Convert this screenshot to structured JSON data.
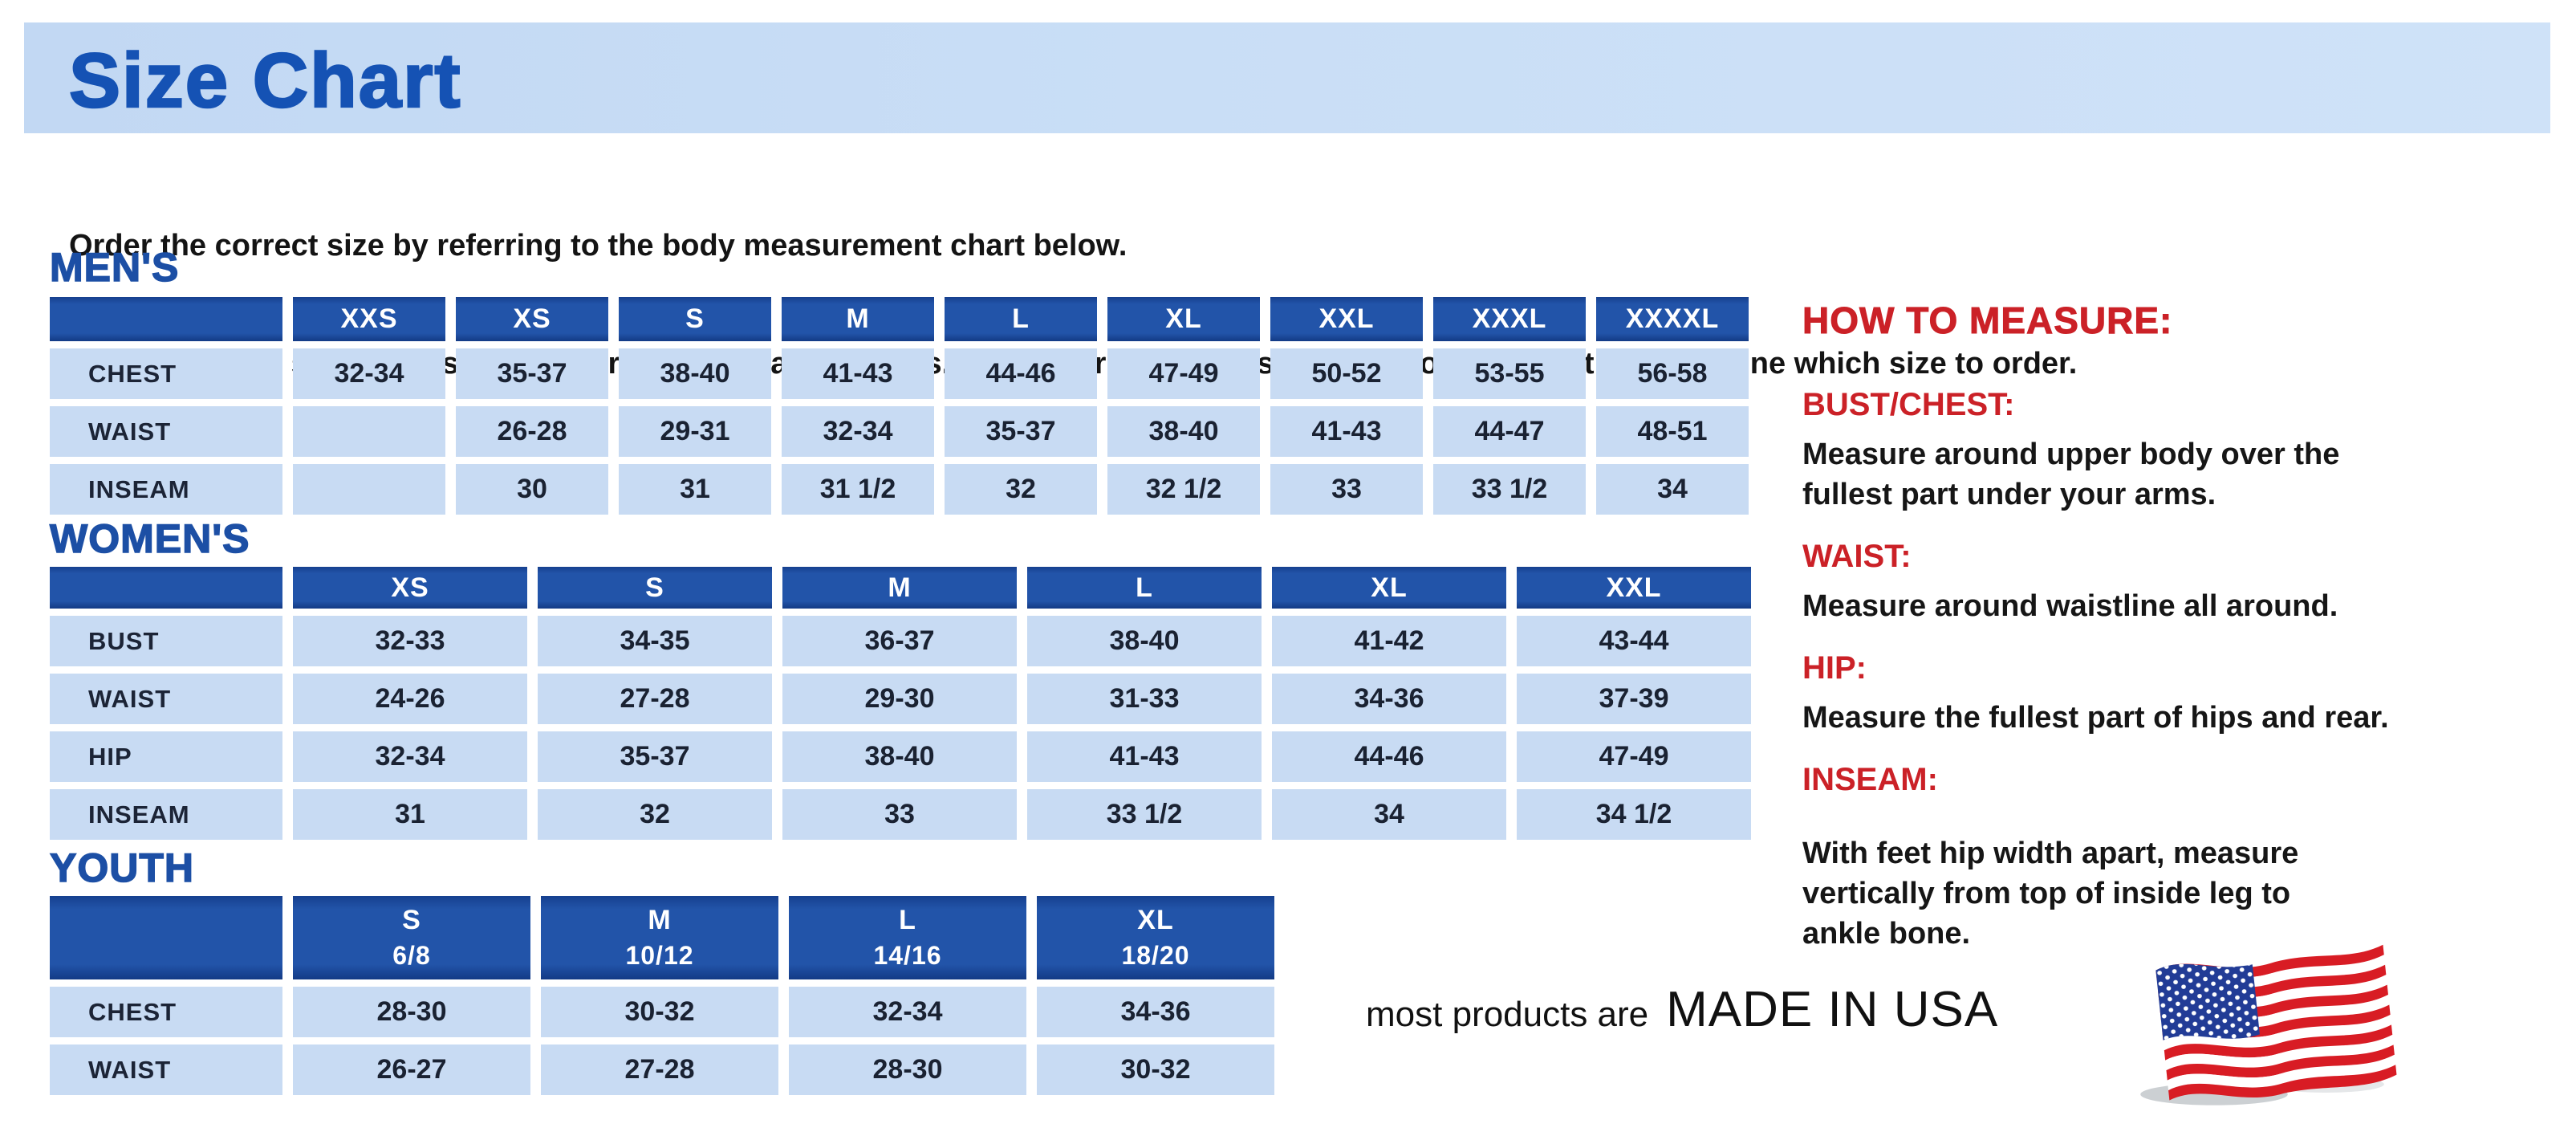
{
  "banner": {
    "title": "Size Chart"
  },
  "intro": {
    "line1": "Order the correct size by referring to the body measurement chart below.",
    "line2": "Measurements shown on size chart are body measurements.  Find your body measurements on the chart to determine which size to order."
  },
  "tables": [
    {
      "heading": "MEN'S",
      "columns": [
        {
          "label": "XXS",
          "sub": ""
        },
        {
          "label": "XS",
          "sub": ""
        },
        {
          "label": "S",
          "sub": ""
        },
        {
          "label": "M",
          "sub": ""
        },
        {
          "label": "L",
          "sub": ""
        },
        {
          "label": "XL",
          "sub": ""
        },
        {
          "label": "XXL",
          "sub": ""
        },
        {
          "label": "XXXL",
          "sub": ""
        },
        {
          "label": "XXXXL",
          "sub": ""
        }
      ],
      "rows": [
        {
          "label": "CHEST",
          "values": [
            "32-34",
            "35-37",
            "38-40",
            "41-43",
            "44-46",
            "47-49",
            "50-52",
            "53-55",
            "56-58"
          ]
        },
        {
          "label": "WAIST",
          "values": [
            "",
            "26-28",
            "29-31",
            "32-34",
            "35-37",
            "38-40",
            "41-43",
            "44-47",
            "48-51"
          ]
        },
        {
          "label": "INSEAM",
          "values": [
            "",
            "30",
            "31",
            "31 1/2",
            "32",
            "32 1/2",
            "33",
            "33 1/2",
            "34"
          ]
        }
      ]
    },
    {
      "heading": "WOMEN'S",
      "columns": [
        {
          "label": "XS",
          "sub": ""
        },
        {
          "label": "S",
          "sub": ""
        },
        {
          "label": "M",
          "sub": ""
        },
        {
          "label": "L",
          "sub": ""
        },
        {
          "label": "XL",
          "sub": ""
        },
        {
          "label": "XXL",
          "sub": ""
        }
      ],
      "rows": [
        {
          "label": "BUST",
          "values": [
            "32-33",
            "34-35",
            "36-37",
            "38-40",
            "41-42",
            "43-44"
          ]
        },
        {
          "label": "WAIST",
          "values": [
            "24-26",
            "27-28",
            "29-30",
            "31-33",
            "34-36",
            "37-39"
          ]
        },
        {
          "label": "HIP",
          "values": [
            "32-34",
            "35-37",
            "38-40",
            "41-43",
            "44-46",
            "47-49"
          ]
        },
        {
          "label": "INSEAM",
          "values": [
            "31",
            "32",
            "33",
            "33 1/2",
            "34",
            "34 1/2"
          ]
        }
      ]
    },
    {
      "heading": "YOUTH",
      "columns": [
        {
          "label": "S",
          "sub": "6/8"
        },
        {
          "label": "M",
          "sub": "10/12"
        },
        {
          "label": "L",
          "sub": "14/16"
        },
        {
          "label": "XL",
          "sub": "18/20"
        }
      ],
      "rows": [
        {
          "label": "CHEST",
          "values": [
            "28-30",
            "30-32",
            "32-34",
            "34-36"
          ]
        },
        {
          "label": "WAIST",
          "values": [
            "26-27",
            "27-28",
            "28-30",
            "30-32"
          ]
        }
      ]
    }
  ],
  "how_to_measure": {
    "heading": "HOW TO MEASURE:",
    "sections": [
      {
        "label": "BUST/CHEST:",
        "text": "Measure around upper body over the\nfullest part under your arms."
      },
      {
        "label": "WAIST:",
        "text": "Measure around waistline all around."
      },
      {
        "label": "HIP:",
        "text": "Measure the fullest part of hips and rear."
      },
      {
        "label": "INSEAM:",
        "text": "With feet hip width apart, measure\nvertically from top of inside leg to\nankle bone."
      }
    ]
  },
  "footer": {
    "prefix": "most products are",
    "main": "MADE IN USA"
  },
  "colors": {
    "banner_bg": "#c9def6",
    "title_blue": "#1552b4",
    "section_blue": "#1c4fa5",
    "table_header_blue": "#2254a9",
    "cell_blue": "#c8dbf3",
    "heading_red": "#cb2127",
    "flag_red": "#d81c24",
    "flag_blue": "#223c96"
  }
}
